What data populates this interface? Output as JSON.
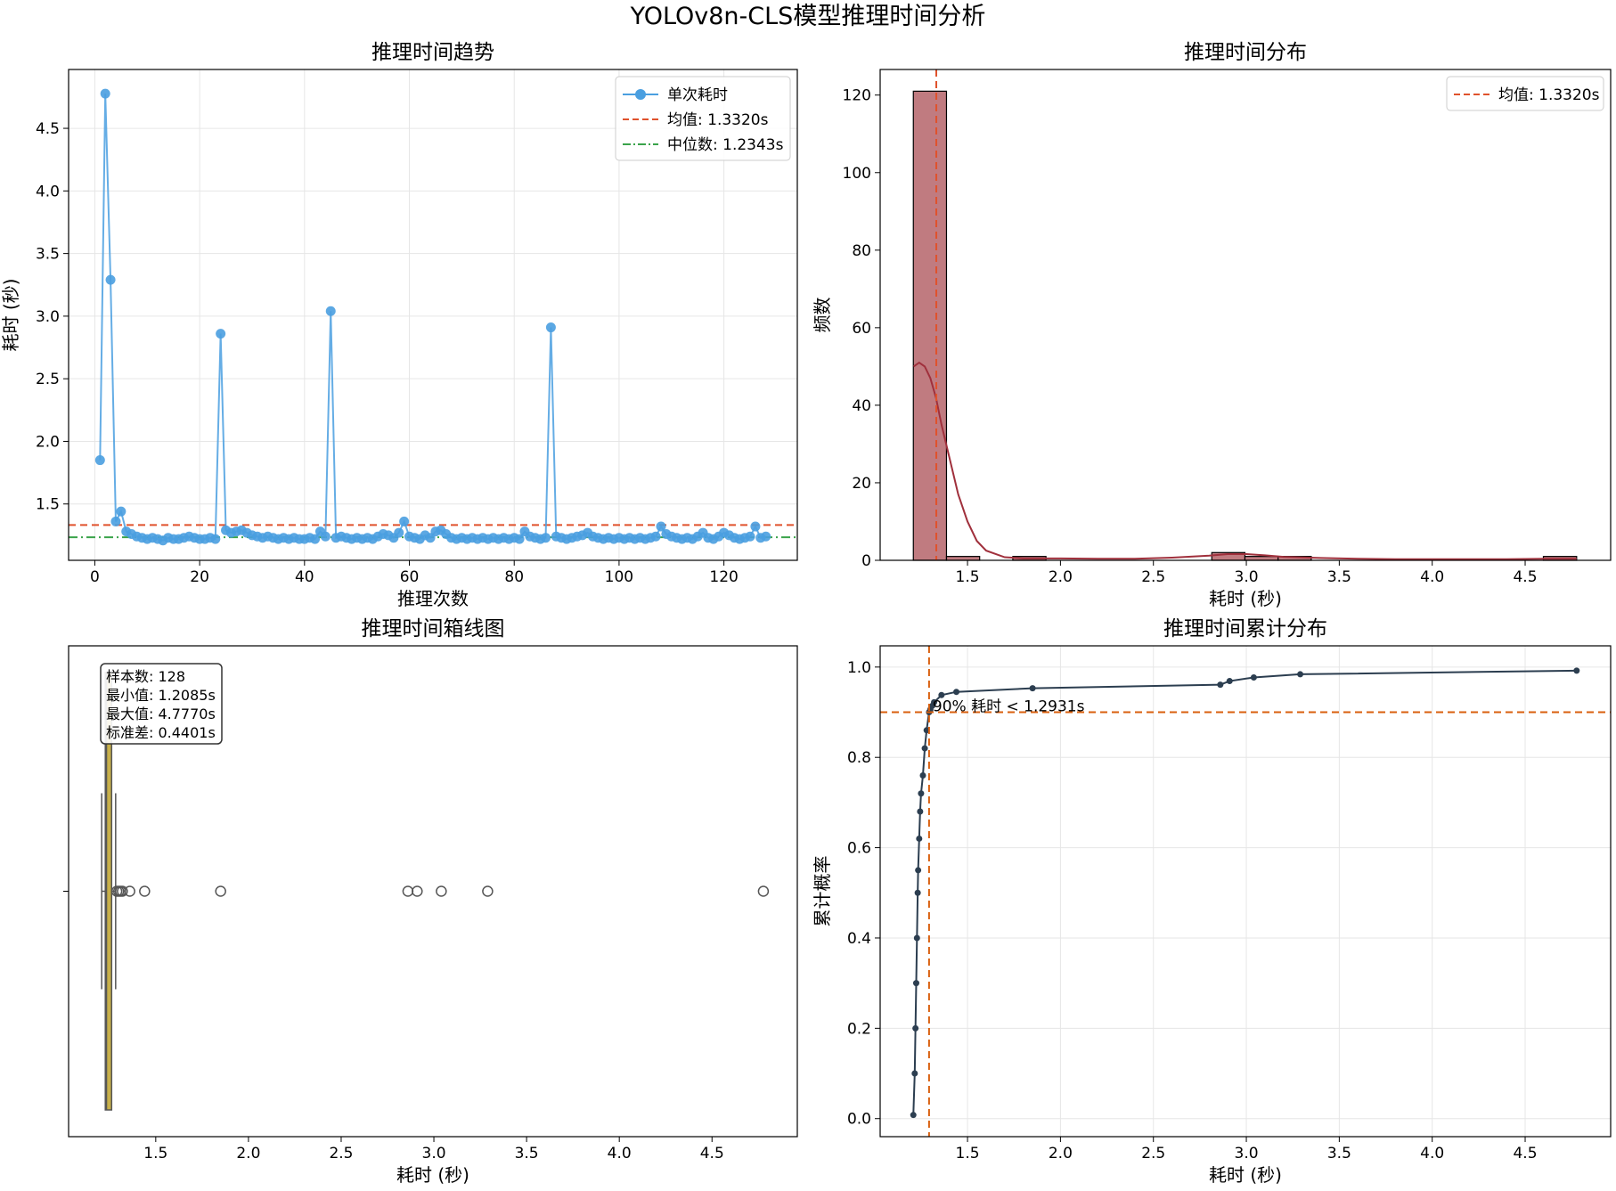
{
  "figure": {
    "title": "YOLOv8n-CLS模型推理时间分析"
  },
  "chart_data": [
    {
      "type": "line",
      "title": "推理时间趋势",
      "xlabel": "推理次数",
      "ylabel": "耗时 (秒)",
      "xlim": [
        -5,
        134
      ],
      "ylim": [
        1.05,
        4.97
      ],
      "xticks": [
        0,
        20,
        40,
        60,
        80,
        100,
        120
      ],
      "yticks": [
        1.5,
        2.0,
        2.5,
        3.0,
        3.5,
        4.0,
        4.5
      ],
      "grid": true,
      "legend_position": "upper right",
      "series": [
        {
          "name": "单次耗时",
          "color": "#4a9fe0",
          "x_start": 1,
          "values": [
            1.85,
            4.777,
            3.29,
            1.36,
            1.44,
            1.28,
            1.26,
            1.24,
            1.23,
            1.22,
            1.23,
            1.22,
            1.2085,
            1.23,
            1.22,
            1.22,
            1.23,
            1.24,
            1.23,
            1.22,
            1.22,
            1.23,
            1.22,
            2.86,
            1.29,
            1.27,
            1.28,
            1.29,
            1.27,
            1.25,
            1.24,
            1.23,
            1.24,
            1.23,
            1.22,
            1.23,
            1.22,
            1.23,
            1.22,
            1.22,
            1.23,
            1.22,
            1.28,
            1.24,
            3.04,
            1.23,
            1.24,
            1.23,
            1.22,
            1.23,
            1.22,
            1.23,
            1.22,
            1.24,
            1.26,
            1.25,
            1.23,
            1.27,
            1.36,
            1.24,
            1.23,
            1.22,
            1.25,
            1.23,
            1.28,
            1.29,
            1.26,
            1.23,
            1.22,
            1.23,
            1.22,
            1.23,
            1.22,
            1.23,
            1.22,
            1.23,
            1.22,
            1.23,
            1.22,
            1.23,
            1.22,
            1.28,
            1.24,
            1.23,
            1.22,
            1.23,
            2.91,
            1.24,
            1.23,
            1.22,
            1.23,
            1.24,
            1.25,
            1.27,
            1.24,
            1.23,
            1.22,
            1.23,
            1.22,
            1.23,
            1.22,
            1.23,
            1.22,
            1.23,
            1.22,
            1.23,
            1.24,
            1.32,
            1.26,
            1.24,
            1.23,
            1.22,
            1.23,
            1.22,
            1.24,
            1.27,
            1.23,
            1.22,
            1.24,
            1.27,
            1.25,
            1.23,
            1.22,
            1.23,
            1.24,
            1.32,
            1.23,
            1.24
          ]
        }
      ],
      "hlines": [
        {
          "name": "均值: 1.3320s",
          "y": 1.332,
          "color": "#e0522c",
          "style": "dashed"
        },
        {
          "name": "中位数: 1.2343s",
          "y": 1.2343,
          "color": "#3aa34a",
          "style": "dashdot"
        }
      ]
    },
    {
      "type": "bar",
      "title": "推理时间分布",
      "xlabel": "耗时 (秒)",
      "ylabel": "频数",
      "xlim": [
        1.03,
        4.96
      ],
      "ylim": [
        0,
        126.6
      ],
      "xticks": [
        1.5,
        2.0,
        2.5,
        3.0,
        3.5,
        4.0,
        4.5
      ],
      "yticks": [
        0,
        20,
        40,
        60,
        80,
        100,
        120
      ],
      "grid": false,
      "legend_position": "upper right",
      "bin_edges": [
        1.2085,
        1.3869,
        1.5653,
        1.7437,
        1.9221,
        2.1005,
        2.2789,
        2.4573,
        2.6357,
        2.8141,
        2.9925,
        3.1709,
        3.3493,
        3.5277,
        3.7061,
        3.8845,
        4.0629,
        4.2413,
        4.4197,
        4.5981,
        4.777
      ],
      "counts": [
        121,
        1,
        0,
        1,
        0,
        0,
        0,
        0,
        0,
        2,
        1,
        1,
        0,
        0,
        0,
        0,
        0,
        0,
        0,
        1
      ],
      "bar_color": "#c07b80",
      "kde": {
        "color": "#a0303c",
        "x": [
          1.21,
          1.24,
          1.27,
          1.3,
          1.33,
          1.36,
          1.4,
          1.45,
          1.5,
          1.55,
          1.6,
          1.7,
          1.8,
          1.9,
          2.0,
          2.2,
          2.4,
          2.6,
          2.8,
          2.9,
          3.0,
          3.1,
          3.2,
          3.4,
          3.6,
          3.8,
          4.0,
          4.2,
          4.4,
          4.6,
          4.777
        ],
        "y": [
          50,
          51,
          50,
          47,
          42,
          35,
          27,
          17,
          10,
          5,
          2.5,
          0.8,
          0.5,
          0.5,
          0.5,
          0.4,
          0.4,
          0.7,
          1.2,
          1.6,
          1.6,
          1.3,
          0.9,
          0.6,
          0.4,
          0.3,
          0.3,
          0.3,
          0.3,
          0.4,
          0.4
        ]
      },
      "vlines": [
        {
          "name": "均值: 1.3320s",
          "x": 1.332,
          "color": "#e0522c",
          "style": "dashed"
        }
      ]
    },
    {
      "type": "box",
      "title": "推理时间箱线图",
      "xlabel": "耗时 (秒)",
      "xlim": [
        1.03,
        4.96
      ],
      "xticks": [
        1.5,
        2.0,
        2.5,
        3.0,
        3.5,
        4.0,
        4.5
      ],
      "whisker_low": 1.2085,
      "q1": 1.228,
      "median": 1.2343,
      "q3": 1.262,
      "whisker_high": 1.2838,
      "outliers": [
        1.29,
        1.3,
        1.31,
        1.32,
        1.36,
        1.44,
        1.85,
        2.86,
        2.91,
        3.04,
        3.29,
        4.777
      ],
      "box_color": "#c8b04a",
      "stats_box": [
        "样本数: 128",
        "最小值: 1.2085s",
        "最大值: 4.7770s",
        "标准差: 0.4401s"
      ]
    },
    {
      "type": "line",
      "title": "推理时间累计分布",
      "xlabel": "耗时 (秒)",
      "ylabel": "累计概率",
      "xlim": [
        1.03,
        4.96
      ],
      "ylim": [
        -0.04,
        1.047
      ],
      "xticks": [
        1.5,
        2.0,
        2.5,
        3.0,
        3.5,
        4.0,
        4.5
      ],
      "yticks": [
        0.0,
        0.2,
        0.4,
        0.6,
        0.8,
        1.0
      ],
      "grid": true,
      "line_color": "#2c3e50",
      "vline": {
        "x": 1.2931,
        "color": "#d95f0e"
      },
      "hline": {
        "y": 0.9,
        "color": "#d95f0e"
      },
      "annotation": "90% 耗时 < 1.2931s",
      "cdf_points": [
        [
          1.2085,
          0.008
        ],
        [
          1.216,
          0.1
        ],
        [
          1.22,
          0.2
        ],
        [
          1.224,
          0.3
        ],
        [
          1.228,
          0.4
        ],
        [
          1.232,
          0.5
        ],
        [
          1.2343,
          0.55
        ],
        [
          1.24,
          0.62
        ],
        [
          1.245,
          0.68
        ],
        [
          1.25,
          0.72
        ],
        [
          1.26,
          0.76
        ],
        [
          1.27,
          0.82
        ],
        [
          1.28,
          0.86
        ],
        [
          1.2931,
          0.9
        ],
        [
          1.3,
          0.906
        ],
        [
          1.31,
          0.914
        ],
        [
          1.32,
          0.922
        ],
        [
          1.36,
          0.938
        ],
        [
          1.44,
          0.945
        ],
        [
          1.85,
          0.953
        ],
        [
          2.86,
          0.961
        ],
        [
          2.91,
          0.969
        ],
        [
          3.04,
          0.977
        ],
        [
          3.29,
          0.984
        ],
        [
          4.777,
          0.992
        ]
      ]
    }
  ]
}
